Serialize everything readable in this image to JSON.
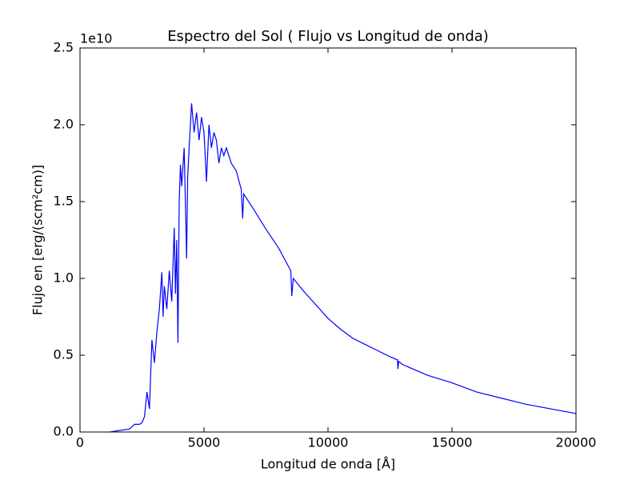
{
  "chart_data": {
    "type": "line",
    "title": "Espectro del Sol ( Flujo vs Longitud de onda)",
    "x_label": "Longitud de onda [Å]",
    "y_label": "Flujo en [erg/(scm²cm)]",
    "y_offset_label": "1e10",
    "x": [
      1200,
      2000,
      2200,
      2400,
      2500,
      2600,
      2700,
      2800,
      2900,
      3000,
      3100,
      3200,
      3300,
      3350,
      3400,
      3500,
      3600,
      3700,
      3800,
      3850,
      3900,
      3950,
      4000,
      4050,
      4100,
      4200,
      4300,
      4340,
      4400,
      4500,
      4600,
      4700,
      4800,
      4900,
      5000,
      5100,
      5200,
      5300,
      5400,
      5500,
      5600,
      5700,
      5800,
      5900,
      6000,
      6100,
      6300,
      6500,
      6560,
      6600,
      7000,
      7500,
      8000,
      8500,
      8540,
      8600,
      9000,
      9500,
      10000,
      10500,
      11000,
      11500,
      12000,
      12500,
      12800,
      12820,
      12850,
      13000,
      14000,
      15000,
      16000,
      17000,
      18000,
      19000,
      20000
    ],
    "series": [
      {
        "name": "Flujo",
        "color": "#0000ff",
        "values": [
          0.0,
          0.02,
          0.05,
          0.05,
          0.06,
          0.1,
          0.26,
          0.15,
          0.6,
          0.45,
          0.65,
          0.8,
          1.04,
          0.75,
          0.95,
          0.8,
          1.05,
          0.85,
          1.33,
          0.9,
          1.25,
          0.58,
          1.5,
          1.74,
          1.6,
          1.85,
          1.13,
          1.65,
          1.85,
          2.14,
          1.95,
          2.08,
          1.9,
          2.05,
          1.95,
          1.63,
          2.0,
          1.85,
          1.95,
          1.9,
          1.75,
          1.85,
          1.8,
          1.85,
          1.8,
          1.75,
          1.7,
          1.58,
          1.39,
          1.55,
          1.45,
          1.32,
          1.2,
          1.05,
          0.885,
          1.0,
          0.92,
          0.83,
          0.74,
          0.67,
          0.61,
          0.57,
          0.53,
          0.49,
          0.47,
          0.41,
          0.46,
          0.44,
          0.37,
          0.32,
          0.26,
          0.22,
          0.18,
          0.15,
          0.12
        ]
      }
    ],
    "xlim": [
      0,
      20000
    ],
    "xticks": [
      0,
      5000,
      10000,
      15000,
      20000
    ],
    "ylim": [
      0,
      2.5
    ],
    "yticks": [
      {
        "value": 0,
        "label": "0.0"
      },
      0.5,
      {
        "value": 1,
        "label": "1.0"
      },
      1.5,
      {
        "value": 2,
        "label": "2.0"
      },
      2.5
    ],
    "grid": false
  }
}
